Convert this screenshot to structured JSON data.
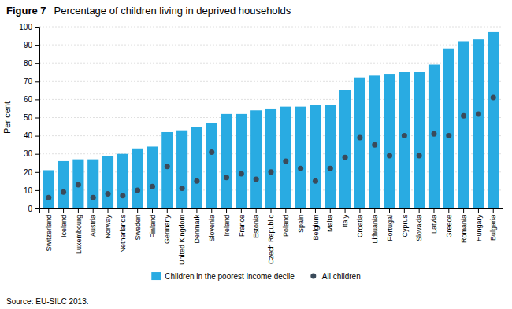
{
  "chart_data": {
    "type": "bar",
    "title": "Figure 7",
    "subtitle": "Percentage of children living in deprived households",
    "y_label": "Per cent",
    "annotations": [
      "Source: EU-SILC 2013."
    ],
    "categories": [
      "Switzerland",
      "Iceland",
      "Luxembourg",
      "Austria",
      "Norway",
      "Netherlands",
      "Sweden",
      "Finland",
      "Germany",
      "United Kingdom",
      "Denmark",
      "Slovenia",
      "Ireland",
      "France",
      "Estonia",
      "Czech Republic",
      "Poland",
      "Spain",
      "Belgium",
      "Malta",
      "Italy",
      "Croatia",
      "Lithuania",
      "Portugal",
      "Cyprus",
      "Slovakia",
      "Latvia",
      "Greece",
      "Romania",
      "Hungary",
      "Bulgaria"
    ],
    "series": [
      {
        "name": "Children in the poorest income decile",
        "type": "bar",
        "color": "#29ABE2",
        "values": [
          21,
          26,
          27,
          27,
          29,
          30,
          33,
          34,
          42,
          43,
          45,
          47,
          52,
          52,
          54,
          55,
          56,
          56,
          57,
          57,
          65,
          72,
          73,
          74,
          75,
          75,
          79,
          88,
          92,
          93,
          97
        ]
      },
      {
        "name": "All children",
        "type": "scatter",
        "marker": "circle",
        "color": "#3a4a5a",
        "values": [
          6,
          9,
          13,
          6,
          8,
          7,
          10,
          12,
          23,
          11,
          15,
          31,
          17,
          19,
          16,
          20,
          26,
          22,
          15,
          22,
          28,
          39,
          35,
          29,
          40,
          29,
          41,
          40,
          51,
          52,
          61
        ]
      }
    ],
    "ylim": [
      0,
      100
    ],
    "yticks": [
      0,
      10,
      20,
      30,
      40,
      50,
      60,
      70,
      80,
      90,
      100
    ],
    "grid": true,
    "legend": "bottom"
  }
}
